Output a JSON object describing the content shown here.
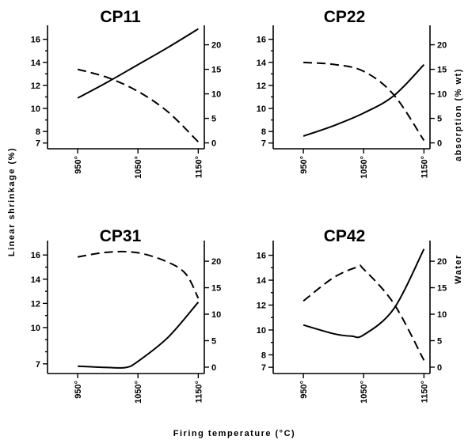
{
  "figure": {
    "xlabel": "Firing temperature  (°C)",
    "left_ylabel": "Linear shrinkage  (%)",
    "right_ylabel_part1": "Water",
    "right_ylabel_part2": "absorption  (% wt)"
  },
  "chart_data": [
    {
      "type": "line",
      "title": "CP11",
      "x_ticks": [
        "950°",
        "1050°",
        "1150°"
      ],
      "x_tick_values": [
        950,
        1050,
        1150
      ],
      "xlim": [
        900,
        1160
      ],
      "y_left_ticks": [
        "7",
        "8",
        "10",
        "12",
        "14",
        "16"
      ],
      "y_left_tick_values": [
        7,
        8,
        10,
        12,
        14,
        16
      ],
      "y_left_lim": [
        6.5,
        16.8
      ],
      "y_right_ticks": [
        "0",
        "5",
        "10",
        "15",
        "20"
      ],
      "y_right_tick_values": [
        0,
        5,
        10,
        15,
        20
      ],
      "y_right_lim": [
        -1.2,
        23
      ],
      "series": [
        {
          "axis": "left",
          "style": "solid",
          "x": [
            950,
            1000,
            1050,
            1100,
            1150
          ],
          "y": [
            10.9,
            12.3,
            13.8,
            15.3,
            16.9
          ]
        },
        {
          "axis": "right",
          "style": "dashed",
          "x": [
            950,
            1000,
            1050,
            1100,
            1150
          ],
          "y": [
            15.0,
            13.3,
            10.5,
            6.3,
            0.2
          ]
        }
      ]
    },
    {
      "type": "line",
      "title": "CP22",
      "x_ticks": [
        "950°",
        "1050°",
        "1150°"
      ],
      "x_tick_values": [
        950,
        1050,
        1150
      ],
      "xlim": [
        900,
        1160
      ],
      "y_left_ticks": [
        "7",
        "8",
        "10",
        "12",
        "14",
        "16"
      ],
      "y_left_tick_values": [
        7,
        8,
        10,
        12,
        14,
        16
      ],
      "y_left_lim": [
        6.5,
        16.8
      ],
      "y_right_ticks": [
        "0",
        "5",
        "10",
        "15",
        "20"
      ],
      "y_right_tick_values": [
        0,
        5,
        10,
        15,
        20
      ],
      "y_right_lim": [
        -1.2,
        23
      ],
      "series": [
        {
          "axis": "left",
          "style": "solid",
          "x": [
            950,
            1000,
            1050,
            1100,
            1150
          ],
          "y": [
            7.6,
            8.5,
            9.6,
            11.1,
            13.8
          ]
        },
        {
          "axis": "right",
          "style": "dashed",
          "x": [
            950,
            1000,
            1050,
            1100,
            1150
          ],
          "y": [
            16.4,
            16.0,
            14.6,
            9.8,
            0.5
          ]
        }
      ]
    },
    {
      "type": "line",
      "title": "CP31",
      "x_ticks": [
        "950°",
        "1050°",
        "1150°"
      ],
      "x_tick_values": [
        950,
        1050,
        1150
      ],
      "xlim": [
        900,
        1160
      ],
      "y_left_ticks": [
        "7",
        "10",
        "12",
        "14",
        "16"
      ],
      "y_left_tick_values": [
        7,
        10,
        12,
        14,
        16
      ],
      "y_left_lim": [
        6.2,
        16.8
      ],
      "y_right_ticks": [
        "0",
        "5",
        "10",
        "15",
        "20"
      ],
      "y_right_tick_values": [
        0,
        5,
        10,
        15,
        20
      ],
      "y_right_lim": [
        -1.2,
        23
      ],
      "series": [
        {
          "axis": "left",
          "style": "solid",
          "x": [
            950,
            1000,
            1030,
            1050,
            1100,
            1150
          ],
          "y": [
            6.8,
            6.7,
            6.7,
            7.2,
            9.2,
            12.1
          ]
        },
        {
          "axis": "right",
          "style": "dashed",
          "x": [
            950,
            1000,
            1050,
            1100,
            1130,
            1150
          ],
          "y": [
            20.8,
            21.7,
            21.6,
            19.8,
            17.5,
            13.0
          ]
        }
      ]
    },
    {
      "type": "line",
      "title": "CP42",
      "x_ticks": [
        "950°",
        "1050°",
        "1150°"
      ],
      "x_tick_values": [
        950,
        1050,
        1150
      ],
      "xlim": [
        900,
        1160
      ],
      "y_left_ticks": [
        "7",
        "8",
        "10",
        "12",
        "14",
        "16"
      ],
      "y_left_tick_values": [
        7,
        8,
        10,
        12,
        14,
        16
      ],
      "y_left_lim": [
        6.5,
        16.8
      ],
      "y_right_ticks": [
        "0",
        "5",
        "10",
        "15",
        "20"
      ],
      "y_right_tick_values": [
        0,
        5,
        10,
        15,
        20
      ],
      "y_right_lim": [
        -1.2,
        23
      ],
      "series": [
        {
          "axis": "left",
          "style": "solid",
          "x": [
            950,
            1000,
            1030,
            1050,
            1100,
            1150
          ],
          "y": [
            10.4,
            9.7,
            9.5,
            9.6,
            11.7,
            16.5
          ]
        },
        {
          "axis": "right",
          "style": "dashed",
          "x": [
            950,
            1000,
            1040,
            1050,
            1100,
            1150
          ],
          "y": [
            12.5,
            16.9,
            18.9,
            18.5,
            12.0,
            1.3
          ]
        }
      ]
    }
  ]
}
